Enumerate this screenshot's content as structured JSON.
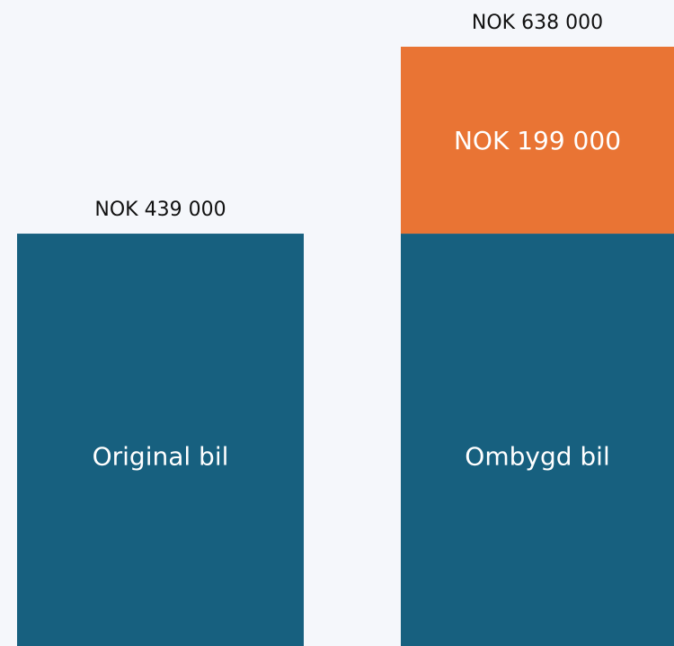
{
  "chart_data": {
    "type": "bar",
    "stacked": true,
    "categories": [
      "Original bil",
      "Ombygd bil"
    ],
    "series": [
      {
        "color": "#17607f",
        "values": [
          439000,
          439000
        ],
        "value_labels": [
          "NOK 439 000",
          null
        ]
      },
      {
        "color": "#e97434",
        "values": [
          null,
          199000
        ],
        "value_labels": [
          null,
          "NOK 199 000"
        ]
      }
    ],
    "totals": [
      null,
      638000
    ],
    "total_labels": [
      null,
      "NOK 638 000"
    ]
  }
}
